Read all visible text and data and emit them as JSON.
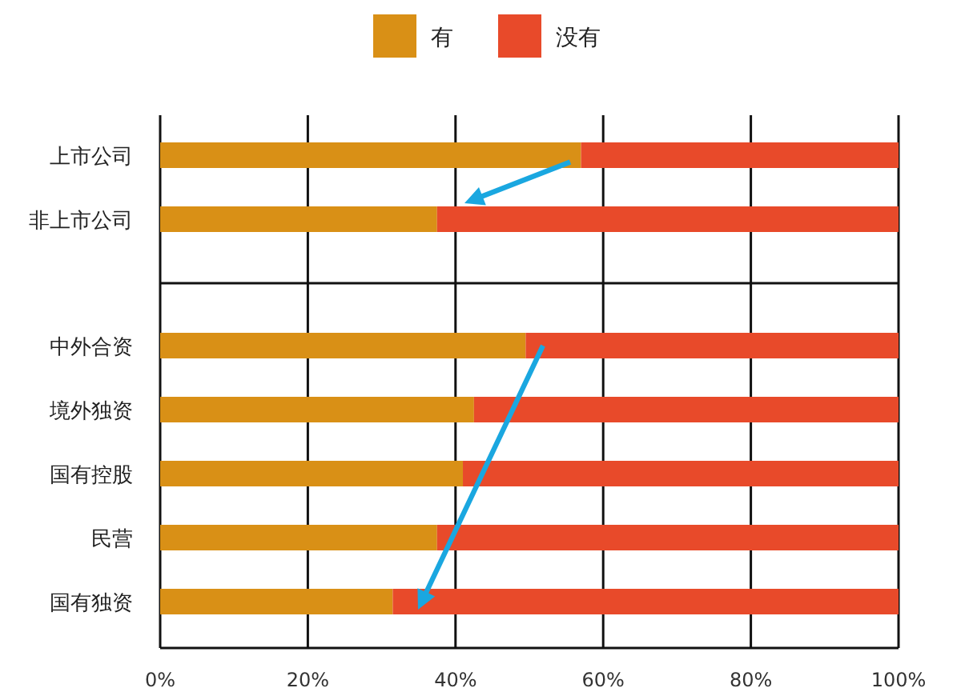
{
  "chart_data": [
    {
      "type": "bar",
      "orientation": "horizontal",
      "stacked": true,
      "categories": [
        "上市公司",
        "非上市公司"
      ],
      "series": [
        {
          "name": "有",
          "color": "#d99016",
          "values": [
            57,
            37.5
          ]
        },
        {
          "name": "没有",
          "color": "#e84a2a",
          "values": [
            43,
            62.5
          ]
        }
      ],
      "xlim": [
        0,
        100
      ],
      "xticks": [
        {
          "value": 0,
          "label": null
        },
        {
          "value": 20,
          "label": null
        },
        {
          "value": 40,
          "label": null
        },
        {
          "value": 60,
          "label": null
        },
        {
          "value": 80,
          "label": null
        },
        {
          "value": 100,
          "label": null
        }
      ],
      "tick_labels": "y",
      "grid": "x",
      "legend": "top"
    },
    {
      "type": "bar",
      "orientation": "horizontal",
      "stacked": true,
      "categories": [
        "中外合资",
        "境外独资",
        "国有控股",
        "民营",
        "国有独资"
      ],
      "series": [
        {
          "color": "#d99016",
          "values": [
            49.5,
            42.5,
            41,
            37.5,
            31.5
          ]
        },
        {
          "color": "#e84a2a",
          "values": [
            50.5,
            57.5,
            59,
            62.5,
            68.5
          ]
        }
      ],
      "xlim": [
        0,
        100
      ],
      "xticks": [
        {
          "value": 0,
          "label": "0%"
        },
        {
          "value": 20,
          "label": "20%"
        },
        {
          "value": 40,
          "label": "40%"
        },
        {
          "value": 60,
          "label": "60%"
        },
        {
          "value": 80,
          "label": "80%"
        },
        {
          "value": 100,
          "label": "100%"
        }
      ],
      "grid": "x"
    }
  ]
}
